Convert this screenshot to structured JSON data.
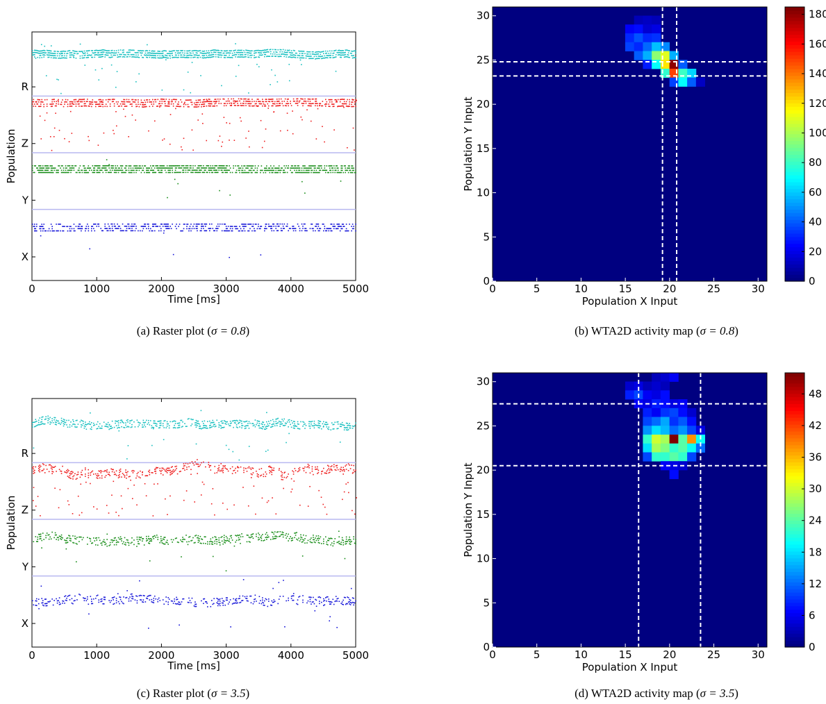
{
  "figure": {
    "panels": [
      {
        "caption_prefix": "(a) Raster plot (",
        "caption_sigma": "σ = 0.8",
        "caption_suffix": ")"
      },
      {
        "caption_prefix": "(b) WTA2D activity map (",
        "caption_sigma": "σ = 0.8",
        "caption_suffix": ")"
      },
      {
        "caption_prefix": "(c) Raster plot (",
        "caption_sigma": "σ = 3.5",
        "caption_suffix": ")"
      },
      {
        "caption_prefix": "(d) WTA2D activity map (",
        "caption_sigma": "σ = 3.5",
        "caption_suffix": ")"
      }
    ]
  },
  "chart_data": [
    {
      "type": "scatter",
      "panel": "a",
      "xlabel": "Time [ms]",
      "ylabel": "Population",
      "xlim": [
        0,
        5000
      ],
      "xticks": [
        "0",
        "1000",
        "2000",
        "3000",
        "4000",
        "5000"
      ],
      "yticklabels": [
        "X",
        "Y",
        "Z",
        "R"
      ],
      "grid": false,
      "colors": {
        "R": "#17bfbf",
        "Z": "#ee1c1c",
        "Y": "#168c16",
        "X": "#1212d8",
        "divider": "#b8b8f0"
      },
      "populations": [
        {
          "name": "R",
          "center": 0.24,
          "spread": 0.55,
          "main_density": 0.7,
          "noise": 0.02
        },
        {
          "name": "Z",
          "center": 0.1,
          "spread": 0.3,
          "main_density": 0.5,
          "noise": 0.05
        },
        {
          "name": "Y",
          "center": 0.27,
          "spread": 0.05,
          "main_density": 0.6,
          "noise": 0.004
        },
        {
          "name": "X",
          "center": 0.3,
          "spread": 0.05,
          "main_density": 0.4,
          "noise": 0.002
        }
      ]
    },
    {
      "type": "heatmap",
      "panel": "b",
      "xlabel": "Population X Input",
      "ylabel": "Population Y Input",
      "xlim": [
        0,
        31
      ],
      "ylim": [
        0,
        31
      ],
      "xticks": [
        "0",
        "5",
        "10",
        "15",
        "20",
        "25",
        "30"
      ],
      "yticks": [
        "0",
        "5",
        "10",
        "15",
        "20",
        "25",
        "30"
      ],
      "colorbar_ticks": [
        "0",
        "20",
        "40",
        "60",
        "80",
        "100",
        "120",
        "140",
        "160",
        "180"
      ],
      "vmin": 0,
      "vmax": 185,
      "vlines": [
        19.2,
        20.8
      ],
      "hlines": [
        23.2,
        24.8
      ],
      "cells": [
        [
          16,
          29,
          10
        ],
        [
          17,
          29,
          12
        ],
        [
          18,
          29,
          10
        ],
        [
          15,
          28,
          22
        ],
        [
          16,
          28,
          25
        ],
        [
          17,
          28,
          15
        ],
        [
          18,
          28,
          18
        ],
        [
          15,
          27,
          30
        ],
        [
          16,
          27,
          38
        ],
        [
          17,
          27,
          30
        ],
        [
          18,
          27,
          32
        ],
        [
          15,
          26,
          35
        ],
        [
          16,
          26,
          30
        ],
        [
          17,
          26,
          42
        ],
        [
          18,
          26,
          58
        ],
        [
          19,
          26,
          48
        ],
        [
          16,
          25,
          40
        ],
        [
          17,
          25,
          55
        ],
        [
          18,
          25,
          95
        ],
        [
          19,
          25,
          110
        ],
        [
          20,
          25,
          55
        ],
        [
          17,
          24,
          28
        ],
        [
          18,
          24,
          70
        ],
        [
          19,
          24,
          120
        ],
        [
          20,
          24,
          182
        ],
        [
          21,
          24,
          40
        ],
        [
          19,
          23,
          78
        ],
        [
          20,
          23,
          150
        ],
        [
          21,
          23,
          80
        ],
        [
          22,
          23,
          62
        ],
        [
          20,
          22,
          35
        ],
        [
          21,
          22,
          70
        ],
        [
          22,
          22,
          40
        ],
        [
          23,
          22,
          12
        ]
      ]
    },
    {
      "type": "scatter",
      "panel": "c",
      "xlabel": "Time [ms]",
      "ylabel": "Population",
      "xlim": [
        0,
        5000
      ],
      "xticks": [
        "0",
        "1000",
        "2000",
        "3000",
        "4000",
        "5000"
      ],
      "yticklabels": [
        "X",
        "Y",
        "Z",
        "R"
      ],
      "grid": false,
      "colors": {
        "R": "#17bfbf",
        "Z": "#ee1c1c",
        "Y": "#168c16",
        "X": "#1212d8",
        "divider": "#b8b8f0"
      },
      "populations": [
        {
          "name": "R",
          "center": 0.3,
          "spread": 1.2,
          "main_density": 0.45,
          "noise": 0.01
        },
        {
          "name": "Z",
          "center": 0.15,
          "spread": 2.2,
          "main_density": 0.3,
          "noise": 0.04
        },
        {
          "name": "Y",
          "center": 0.32,
          "spread": 1.3,
          "main_density": 0.35,
          "noise": 0.01
        },
        {
          "name": "X",
          "center": 0.43,
          "spread": 1.3,
          "main_density": 0.3,
          "noise": 0.01
        }
      ]
    },
    {
      "type": "heatmap",
      "panel": "d",
      "xlabel": "Population X Input",
      "ylabel": "Population Y Input",
      "xlim": [
        0,
        31
      ],
      "ylim": [
        0,
        31
      ],
      "xticks": [
        "0",
        "5",
        "10",
        "15",
        "20",
        "25",
        "30"
      ],
      "yticks": [
        "0",
        "5",
        "10",
        "15",
        "20",
        "25",
        "30"
      ],
      "colorbar_ticks": [
        "0",
        "6",
        "12",
        "18",
        "24",
        "30",
        "36",
        "42",
        "48"
      ],
      "vmin": 0,
      "vmax": 52,
      "vlines": [
        16.5,
        23.5
      ],
      "hlines": [
        20.5,
        27.5
      ],
      "cells": [
        [
          18,
          30,
          3
        ],
        [
          19,
          30,
          4
        ],
        [
          20,
          30,
          6
        ],
        [
          15,
          29,
          4
        ],
        [
          16,
          29,
          5
        ],
        [
          17,
          29,
          3
        ],
        [
          18,
          29,
          4
        ],
        [
          19,
          29,
          3
        ],
        [
          15,
          28,
          8
        ],
        [
          16,
          28,
          10
        ],
        [
          17,
          28,
          6
        ],
        [
          18,
          28,
          5
        ],
        [
          19,
          28,
          7
        ],
        [
          16,
          27,
          6
        ],
        [
          17,
          27,
          5
        ],
        [
          18,
          27,
          8
        ],
        [
          19,
          27,
          7
        ],
        [
          20,
          27,
          5
        ],
        [
          21,
          27,
          6
        ],
        [
          17,
          26,
          8
        ],
        [
          18,
          26,
          6
        ],
        [
          19,
          26,
          9
        ],
        [
          20,
          26,
          10
        ],
        [
          21,
          26,
          7
        ],
        [
          22,
          26,
          4
        ],
        [
          17,
          25,
          10
        ],
        [
          18,
          25,
          12
        ],
        [
          19,
          25,
          15
        ],
        [
          20,
          25,
          9
        ],
        [
          21,
          25,
          11
        ],
        [
          22,
          25,
          7
        ],
        [
          17,
          24,
          14
        ],
        [
          18,
          24,
          18
        ],
        [
          19,
          24,
          16
        ],
        [
          20,
          24,
          12
        ],
        [
          21,
          24,
          14
        ],
        [
          22,
          24,
          10
        ],
        [
          23,
          24,
          5
        ],
        [
          17,
          23,
          22
        ],
        [
          18,
          23,
          30
        ],
        [
          19,
          23,
          28
        ],
        [
          20,
          23,
          52
        ],
        [
          21,
          23,
          24
        ],
        [
          22,
          23,
          38
        ],
        [
          23,
          23,
          20
        ],
        [
          17,
          22,
          18
        ],
        [
          18,
          22,
          28
        ],
        [
          19,
          22,
          26
        ],
        [
          20,
          22,
          22
        ],
        [
          21,
          22,
          24
        ],
        [
          22,
          22,
          20
        ],
        [
          23,
          22,
          12
        ],
        [
          17,
          21,
          10
        ],
        [
          18,
          21,
          22
        ],
        [
          19,
          21,
          22
        ],
        [
          20,
          21,
          24
        ],
        [
          21,
          21,
          22
        ],
        [
          22,
          21,
          10
        ],
        [
          19,
          20,
          6
        ],
        [
          20,
          20,
          5
        ],
        [
          21,
          20,
          4
        ],
        [
          20,
          19,
          7
        ]
      ]
    }
  ]
}
